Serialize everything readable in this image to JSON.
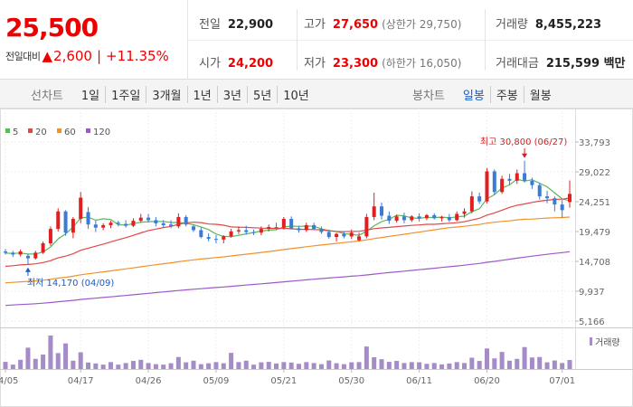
{
  "quote": {
    "price": "25,500",
    "change_label": "전일대비",
    "change_arrow": "▲",
    "change_value": "2,600",
    "change_percent": "+11.35%",
    "rows": [
      [
        {
          "label": "전일",
          "value": "22,900",
          "tone": "black"
        },
        {
          "label": "고가",
          "value": "27,650",
          "tone": "red",
          "sub": "(상한가 29,750)"
        },
        {
          "label": "거래량",
          "value": "8,455,223",
          "tone": "black"
        }
      ],
      [
        {
          "label": "시가",
          "value": "24,200",
          "tone": "red"
        },
        {
          "label": "저가",
          "value": "23,300",
          "tone": "red",
          "sub": "(하한가 16,050)"
        },
        {
          "label": "거래대금",
          "value": "215,599 백만",
          "tone": "black"
        }
      ]
    ]
  },
  "tabs": {
    "line_label": "선차트",
    "line_tabs": [
      "1일",
      "1주일",
      "3개월",
      "1년",
      "3년",
      "5년",
      "10년"
    ],
    "candle_label": "봉차트",
    "candle_tabs": [
      "일봉",
      "주봉",
      "월봉"
    ],
    "candle_selected": "일봉"
  },
  "colors": {
    "up": "#e02020",
    "down": "#3a7bd5",
    "ma5": "#5cb85c",
    "ma20": "#e04848",
    "ma60": "#f0922b",
    "ma120": "#9d59c9",
    "volume": "#a58bc7"
  },
  "chart_data": {
    "type": "candlestick",
    "y_ticks": [
      33793,
      29022,
      24251,
      19479,
      14708,
      9937,
      5166
    ],
    "y_tick_labels": [
      "33,793",
      "29,022",
      "24,251",
      "19,479",
      "14,708",
      "9,937",
      "5,166"
    ],
    "y_range": [
      5166,
      33793
    ],
    "x_tick_labels": [
      "04/05",
      "04/17",
      "04/26",
      "05/09",
      "05/21",
      "05/30",
      "06/11",
      "06/20",
      "07/01"
    ],
    "x_tick_index": [
      0,
      10,
      19,
      28,
      37,
      46,
      55,
      64,
      74
    ],
    "legend": [
      {
        "period": "5",
        "color": "#5cb85c"
      },
      {
        "period": "20",
        "color": "#e04848"
      },
      {
        "period": "60",
        "color": "#f0922b"
      },
      {
        "period": "120",
        "color": "#9d59c9"
      }
    ],
    "high_label": "최고 30,800 (06/27)",
    "low_label": "최저 14,170 (04/09)",
    "high_index": 69,
    "low_index": 3,
    "volume_label": "거래량",
    "candles": [
      [
        16300,
        16700,
        15800,
        16100
      ],
      [
        16100,
        16400,
        15400,
        15800
      ],
      [
        15800,
        16600,
        15500,
        16300
      ],
      [
        15600,
        15900,
        14170,
        15200
      ],
      [
        15200,
        16400,
        15000,
        16100
      ],
      [
        16100,
        17900,
        15900,
        17600
      ],
      [
        17600,
        20300,
        17200,
        19900
      ],
      [
        19900,
        23200,
        19500,
        22700
      ],
      [
        22700,
        22900,
        18800,
        19300
      ],
      [
        19300,
        21800,
        18400,
        21500
      ],
      [
        21500,
        25800,
        20800,
        24900
      ],
      [
        22600,
        23400,
        19900,
        20600
      ],
      [
        20600,
        21200,
        19400,
        20100
      ],
      [
        20100,
        20800,
        19700,
        20500
      ],
      [
        20500,
        21200,
        20000,
        20900
      ],
      [
        20900,
        21200,
        20300,
        20700
      ],
      [
        20700,
        21300,
        20100,
        20400
      ],
      [
        20400,
        21600,
        20200,
        21200
      ],
      [
        21200,
        22300,
        20900,
        21700
      ],
      [
        21700,
        22300,
        20900,
        21300
      ],
      [
        21300,
        21800,
        20300,
        20800
      ],
      [
        20800,
        21300,
        20100,
        20500
      ],
      [
        20600,
        21300,
        20000,
        20300
      ],
      [
        20300,
        22400,
        20000,
        21800
      ],
      [
        21800,
        22100,
        20300,
        20600
      ],
      [
        20300,
        20600,
        19400,
        19700
      ],
      [
        19700,
        20100,
        18400,
        18600
      ],
      [
        18600,
        19200,
        17900,
        18300
      ],
      [
        18300,
        18900,
        17600,
        18200
      ],
      [
        18200,
        18900,
        17600,
        18700
      ],
      [
        18700,
        19900,
        18500,
        19500
      ],
      [
        19500,
        20300,
        19100,
        19700
      ],
      [
        19700,
        20400,
        19000,
        19400
      ],
      [
        19400,
        19800,
        18900,
        19300
      ],
      [
        19300,
        20300,
        18900,
        19900
      ],
      [
        19900,
        20600,
        19500,
        20200
      ],
      [
        20200,
        20900,
        19700,
        20100
      ],
      [
        20100,
        21800,
        19800,
        21500
      ],
      [
        21500,
        21900,
        19800,
        20000
      ],
      [
        20000,
        20400,
        19300,
        19700
      ],
      [
        19700,
        20900,
        19400,
        20500
      ],
      [
        20500,
        20900,
        19700,
        19900
      ],
      [
        19900,
        20300,
        19100,
        19400
      ],
      [
        19400,
        19800,
        18300,
        18600
      ],
      [
        18600,
        19300,
        17900,
        19100
      ],
      [
        19100,
        19500,
        18400,
        18700
      ],
      [
        18700,
        19800,
        18300,
        19300
      ],
      [
        18100,
        19300,
        17900,
        18700
      ],
      [
        18700,
        22300,
        18400,
        21800
      ],
      [
        21800,
        25700,
        21300,
        23500
      ],
      [
        23500,
        24100,
        21400,
        22000
      ],
      [
        22000,
        22700,
        20700,
        21200
      ],
      [
        21200,
        22200,
        20900,
        21900
      ],
      [
        21900,
        22500,
        20800,
        21300
      ],
      [
        21300,
        22100,
        21000,
        21900
      ],
      [
        21900,
        22400,
        21100,
        21600
      ],
      [
        21600,
        22300,
        21300,
        22100
      ],
      [
        22100,
        22400,
        21400,
        21600
      ],
      [
        21600,
        22000,
        21100,
        21800
      ],
      [
        21800,
        22300,
        21000,
        21300
      ],
      [
        21300,
        22700,
        21100,
        22300
      ],
      [
        22300,
        23200,
        21700,
        22700
      ],
      [
        22700,
        25900,
        22400,
        25100
      ],
      [
        25100,
        25700,
        23900,
        24300
      ],
      [
        24300,
        29600,
        24000,
        29100
      ],
      [
        29100,
        29400,
        25300,
        25800
      ],
      [
        25800,
        28400,
        25500,
        27900
      ],
      [
        27900,
        28700,
        26900,
        27600
      ],
      [
        27600,
        29400,
        27100,
        28800
      ],
      [
        28800,
        30800,
        27300,
        27600
      ],
      [
        27600,
        28100,
        26300,
        26900
      ],
      [
        26900,
        27300,
        24600,
        25100
      ],
      [
        25100,
        26000,
        24000,
        24800
      ],
      [
        24800,
        25100,
        22700,
        23800
      ],
      [
        23800,
        24500,
        21700,
        22900
      ],
      [
        24200,
        27650,
        23300,
        25500
      ]
    ],
    "volumes": [
      62,
      38,
      80,
      185,
      88,
      125,
      290,
      138,
      222,
      72,
      145,
      56,
      48,
      38,
      60,
      38,
      52,
      70,
      80,
      52,
      42,
      38,
      50,
      104,
      58,
      72,
      42,
      50,
      60,
      50,
      140,
      60,
      72,
      38,
      58,
      62,
      48,
      60,
      56,
      45,
      60,
      52,
      42,
      74,
      50,
      42,
      58,
      60,
      195,
      102,
      85,
      62,
      70,
      52,
      60,
      58,
      45,
      52,
      40,
      48,
      60,
      52,
      98,
      70,
      178,
      92,
      148,
      72,
      88,
      190,
      100,
      104,
      58,
      74,
      52,
      78
    ]
  }
}
